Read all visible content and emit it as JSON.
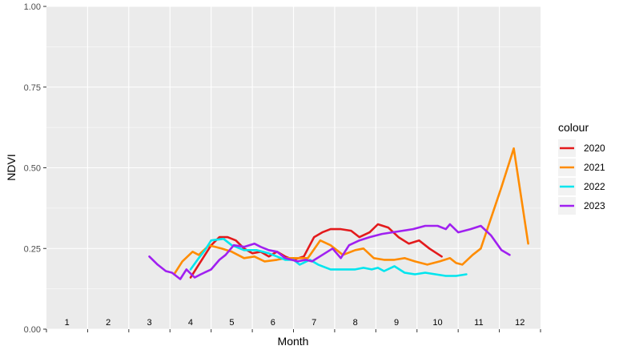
{
  "chart_data": {
    "type": "line",
    "title": "",
    "xlabel": "Month",
    "ylabel": "NDVI",
    "xlim": [
      0.5,
      12.5
    ],
    "ylim": [
      0,
      1
    ],
    "y_ticks": [
      {
        "value": 0,
        "label": "0.00"
      },
      {
        "value": 0.25,
        "label": "0.25"
      },
      {
        "value": 0.5,
        "label": "0.50"
      },
      {
        "value": 0.75,
        "label": "0.75"
      },
      {
        "value": 1,
        "label": "1.00"
      }
    ],
    "month_labels": [
      "1",
      "2",
      "3",
      "4",
      "5",
      "6",
      "7",
      "8",
      "9",
      "10",
      "11",
      "12"
    ],
    "grid": true,
    "legend": {
      "title": "colour",
      "position": "right"
    },
    "series": [
      {
        "name": "2020",
        "color": "#e31a1c",
        "x": [
          4.0,
          4.2,
          4.5,
          4.7,
          4.9,
          5.1,
          5.3,
          5.5,
          5.7,
          5.9,
          6.1,
          6.3,
          6.5,
          6.75,
          7.0,
          7.2,
          7.4,
          7.65,
          7.9,
          8.1,
          8.35,
          8.55,
          8.8,
          9.05,
          9.3,
          9.55,
          9.8,
          10.1
        ],
        "y": [
          0.16,
          0.2,
          0.26,
          0.285,
          0.285,
          0.275,
          0.25,
          0.235,
          0.24,
          0.225,
          0.24,
          0.225,
          0.215,
          0.225,
          0.285,
          0.3,
          0.31,
          0.31,
          0.305,
          0.285,
          0.3,
          0.325,
          0.315,
          0.285,
          0.265,
          0.275,
          0.25,
          0.225
        ]
      },
      {
        "name": "2021",
        "color": "#ff8c00",
        "x": [
          3.6,
          3.8,
          4.05,
          4.2,
          4.45,
          4.75,
          5.0,
          5.3,
          5.55,
          5.8,
          6.1,
          6.3,
          6.6,
          6.85,
          7.15,
          7.4,
          7.7,
          8.0,
          8.2,
          8.45,
          8.7,
          8.95,
          9.2,
          9.45,
          9.75,
          10.05,
          10.3,
          10.45,
          10.6,
          10.85,
          11.05,
          11.55,
          11.85,
          12.2
        ],
        "y": [
          0.17,
          0.21,
          0.24,
          0.23,
          0.26,
          0.25,
          0.24,
          0.22,
          0.225,
          0.21,
          0.215,
          0.22,
          0.22,
          0.22,
          0.275,
          0.26,
          0.23,
          0.245,
          0.25,
          0.22,
          0.215,
          0.215,
          0.22,
          0.21,
          0.2,
          0.21,
          0.22,
          0.205,
          0.2,
          0.23,
          0.25,
          0.44,
          0.56,
          0.265
        ]
      },
      {
        "name": "2022",
        "color": "#00e5ee",
        "x": [
          4.0,
          4.2,
          4.35,
          4.5,
          4.8,
          5.0,
          5.3,
          5.6,
          5.9,
          6.1,
          6.3,
          6.5,
          6.65,
          6.9,
          7.1,
          7.4,
          7.7,
          8.0,
          8.2,
          8.4,
          8.55,
          8.7,
          8.95,
          9.2,
          9.45,
          9.7,
          9.95,
          10.2,
          10.45,
          10.7
        ],
        "y": [
          0.185,
          0.22,
          0.245,
          0.275,
          0.28,
          0.26,
          0.245,
          0.245,
          0.235,
          0.225,
          0.215,
          0.215,
          0.2,
          0.215,
          0.2,
          0.185,
          0.185,
          0.185,
          0.19,
          0.185,
          0.19,
          0.18,
          0.195,
          0.175,
          0.17,
          0.175,
          0.17,
          0.165,
          0.165,
          0.17
        ]
      },
      {
        "name": "2023",
        "color": "#a020f0",
        "x": [
          3.0,
          3.2,
          3.4,
          3.55,
          3.75,
          3.9,
          4.1,
          4.25,
          4.5,
          4.7,
          4.85,
          5.05,
          5.3,
          5.55,
          5.7,
          5.9,
          6.1,
          6.3,
          6.6,
          6.8,
          6.95,
          7.2,
          7.45,
          7.65,
          7.85,
          8.1,
          8.35,
          8.65,
          8.9,
          9.15,
          9.4,
          9.7,
          10.0,
          10.2,
          10.3,
          10.5,
          10.8,
          11.05,
          11.3,
          11.55,
          11.75
        ],
        "y": [
          0.225,
          0.2,
          0.18,
          0.175,
          0.155,
          0.185,
          0.16,
          0.17,
          0.185,
          0.215,
          0.23,
          0.26,
          0.255,
          0.265,
          0.255,
          0.245,
          0.24,
          0.22,
          0.21,
          0.215,
          0.21,
          0.23,
          0.25,
          0.22,
          0.26,
          0.275,
          0.285,
          0.295,
          0.3,
          0.305,
          0.31,
          0.32,
          0.32,
          0.31,
          0.325,
          0.3,
          0.31,
          0.32,
          0.29,
          0.245,
          0.23
        ]
      }
    ]
  }
}
